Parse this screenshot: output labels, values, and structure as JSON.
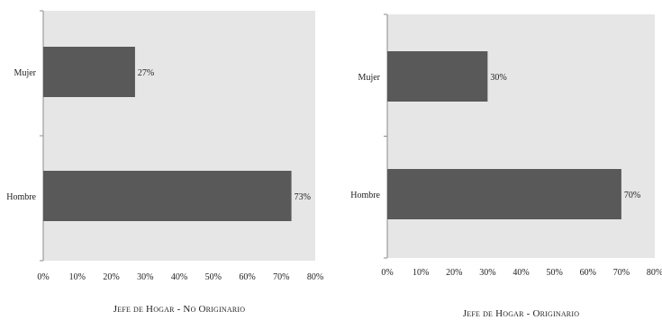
{
  "chart_data": [
    {
      "type": "bar",
      "orientation": "horizontal",
      "title": "Jefe de Hogar - No Originario",
      "categories": [
        "Mujer",
        "Hombre"
      ],
      "values": [
        27,
        73
      ],
      "data_labels": [
        "27%",
        "73%"
      ],
      "xlim": [
        0,
        80
      ],
      "x_ticks": [
        "0%",
        "10%",
        "20%",
        "30%",
        "40%",
        "50%",
        "60%",
        "70%",
        "80%"
      ],
      "bar_color": "#595959",
      "plot_background": "#e6e6e6",
      "grid": false,
      "legend": "none"
    },
    {
      "type": "bar",
      "orientation": "horizontal",
      "title": "Jefe de Hogar - Originario",
      "categories": [
        "Mujer",
        "Hombre"
      ],
      "values": [
        30,
        70
      ],
      "data_labels": [
        "30%",
        "70%"
      ],
      "xlim": [
        0,
        80
      ],
      "x_ticks": [
        "0%",
        "10%",
        "20%",
        "30%",
        "40%",
        "50%",
        "60%",
        "70%",
        "80%"
      ],
      "bar_color": "#595959",
      "plot_background": "#e6e6e6",
      "grid": false,
      "legend": "none"
    }
  ]
}
